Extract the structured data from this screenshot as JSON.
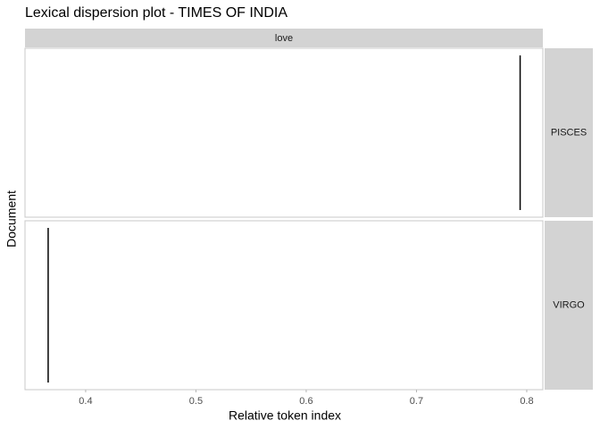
{
  "chart_data": {
    "type": "dispersion",
    "title": "Lexical dispersion plot - TIMES OF INDIA",
    "facet": "love",
    "x_label": "Relative token index",
    "y_label": "Document",
    "categories": [
      "PISCES",
      "VIRGO"
    ],
    "values": [
      0.794,
      0.366
    ],
    "color": "#000000",
    "xlim": [
      0.345,
      0.8146
    ],
    "xticks": [
      0.4,
      0.5,
      0.6,
      0.7,
      0.8
    ],
    "grid": false
  }
}
